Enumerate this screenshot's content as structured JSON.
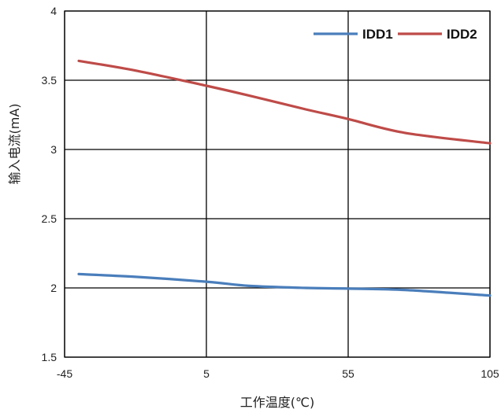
{
  "chart_data": {
    "type": "line",
    "xlabel": "工作温度(℃)",
    "ylabel": "输入电流(mA)",
    "xlim": [
      -45,
      105
    ],
    "ylim": [
      1.5,
      4
    ],
    "xticks": [
      -45,
      5,
      55,
      105
    ],
    "yticks": [
      1.5,
      2,
      2.5,
      3,
      3.5,
      4
    ],
    "grid": true,
    "legend_position": "top-right",
    "series": [
      {
        "name": "IDD1",
        "color": "#4a7ebb",
        "x": [
          -40,
          -20,
          5,
          20,
          40,
          55,
          75,
          105
        ],
        "y": [
          2.1,
          2.08,
          2.045,
          2.015,
          2.0,
          1.995,
          1.985,
          1.945
        ]
      },
      {
        "name": "IDD2",
        "color": "#be4b48",
        "x": [
          -40,
          -20,
          5,
          20,
          40,
          55,
          75,
          105
        ],
        "y": [
          3.64,
          3.57,
          3.46,
          3.39,
          3.29,
          3.22,
          3.12,
          3.045
        ]
      }
    ]
  }
}
